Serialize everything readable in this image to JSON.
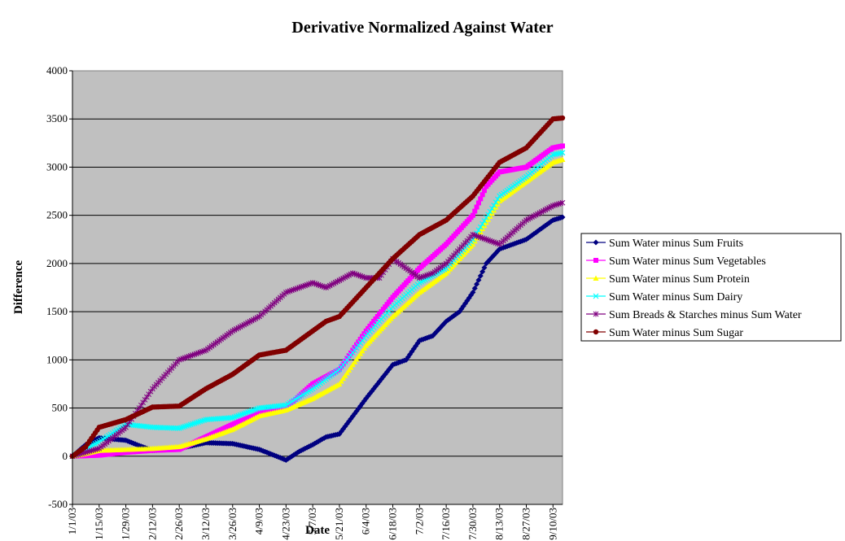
{
  "chart_data": {
    "type": "line",
    "title": "Derivative Normalized Against Water",
    "xlabel": "Date",
    "ylabel": "Difference",
    "ylim": [
      -500,
      4000
    ],
    "yticks": [
      "-500",
      "0",
      "500",
      "1000",
      "1500",
      "2000",
      "2500",
      "3000",
      "3500",
      "4000"
    ],
    "xticks": [
      "1/1/03",
      "1/15/03",
      "1/29/03",
      "2/12/03",
      "2/26/03",
      "3/12/03",
      "3/26/03",
      "4/9/03",
      "4/23/03",
      "5/7/03",
      "5/21/03",
      "6/4/03",
      "6/18/03",
      "7/2/03",
      "7/16/03",
      "7/30/03",
      "8/13/03",
      "8/27/03",
      "9/10/03"
    ],
    "x_start": "1/1/03",
    "x_end": "9/15/03",
    "grid": true,
    "legend_position": "right",
    "plot_background": "#c0c0c0",
    "series": [
      {
        "name": "Sum Water minus Sum Fruits",
        "color": "#000080",
        "marker": "diamond",
        "points": [
          [
            "1/1/03",
            0
          ],
          [
            "1/8/03",
            120
          ],
          [
            "1/15/03",
            190
          ],
          [
            "1/29/03",
            165
          ],
          [
            "2/5/03",
            110
          ],
          [
            "2/12/03",
            60
          ],
          [
            "2/26/03",
            80
          ],
          [
            "3/12/03",
            140
          ],
          [
            "3/26/03",
            130
          ],
          [
            "4/9/03",
            70
          ],
          [
            "4/18/03",
            0
          ],
          [
            "4/23/03",
            -40
          ],
          [
            "4/30/03",
            50
          ],
          [
            "5/7/03",
            120
          ],
          [
            "5/14/03",
            200
          ],
          [
            "5/21/03",
            230
          ],
          [
            "6/4/03",
            600
          ],
          [
            "6/18/03",
            950
          ],
          [
            "6/25/03",
            1000
          ],
          [
            "7/2/03",
            1200
          ],
          [
            "7/9/03",
            1250
          ],
          [
            "7/16/03",
            1400
          ],
          [
            "7/23/03",
            1500
          ],
          [
            "7/30/03",
            1700
          ],
          [
            "8/6/03",
            2000
          ],
          [
            "8/13/03",
            2150
          ],
          [
            "8/27/03",
            2250
          ],
          [
            "9/10/03",
            2450
          ],
          [
            "9/15/03",
            2480
          ]
        ]
      },
      {
        "name": "Sum Water minus Sum Vegetables",
        "color": "#ff00ff",
        "marker": "square",
        "points": [
          [
            "1/1/03",
            0
          ],
          [
            "1/15/03",
            10
          ],
          [
            "1/29/03",
            40
          ],
          [
            "2/12/03",
            60
          ],
          [
            "2/26/03",
            70
          ],
          [
            "3/12/03",
            200
          ],
          [
            "3/26/03",
            330
          ],
          [
            "4/9/03",
            450
          ],
          [
            "4/23/03",
            500
          ],
          [
            "5/7/03",
            750
          ],
          [
            "5/21/03",
            900
          ],
          [
            "6/4/03",
            1300
          ],
          [
            "6/18/03",
            1650
          ],
          [
            "7/2/03",
            1950
          ],
          [
            "7/16/03",
            2200
          ],
          [
            "7/30/03",
            2500
          ],
          [
            "8/6/03",
            2800
          ],
          [
            "8/13/03",
            2950
          ],
          [
            "8/27/03",
            3000
          ],
          [
            "9/10/03",
            3200
          ],
          [
            "9/15/03",
            3220
          ]
        ]
      },
      {
        "name": "Sum Water minus Sum Protein",
        "color": "#ffff00",
        "marker": "triangle",
        "points": [
          [
            "1/1/03",
            0
          ],
          [
            "1/15/03",
            60
          ],
          [
            "1/29/03",
            70
          ],
          [
            "2/12/03",
            80
          ],
          [
            "2/26/03",
            100
          ],
          [
            "3/12/03",
            180
          ],
          [
            "3/26/03",
            280
          ],
          [
            "4/9/03",
            420
          ],
          [
            "4/23/03",
            480
          ],
          [
            "5/7/03",
            600
          ],
          [
            "5/21/03",
            750
          ],
          [
            "6/4/03",
            1150
          ],
          [
            "6/18/03",
            1450
          ],
          [
            "7/2/03",
            1700
          ],
          [
            "7/16/03",
            1900
          ],
          [
            "7/30/03",
            2200
          ],
          [
            "8/13/03",
            2650
          ],
          [
            "8/27/03",
            2850
          ],
          [
            "9/10/03",
            3050
          ],
          [
            "9/15/03",
            3080
          ]
        ]
      },
      {
        "name": "Sum Water minus Sum Dairy",
        "color": "#00ffff",
        "marker": "x",
        "points": [
          [
            "1/1/03",
            0
          ],
          [
            "1/15/03",
            150
          ],
          [
            "1/29/03",
            330
          ],
          [
            "2/12/03",
            300
          ],
          [
            "2/26/03",
            290
          ],
          [
            "3/12/03",
            380
          ],
          [
            "3/26/03",
            400
          ],
          [
            "4/9/03",
            500
          ],
          [
            "4/23/03",
            530
          ],
          [
            "5/7/03",
            700
          ],
          [
            "5/21/03",
            900
          ],
          [
            "6/4/03",
            1250
          ],
          [
            "6/18/03",
            1550
          ],
          [
            "7/2/03",
            1800
          ],
          [
            "7/16/03",
            1950
          ],
          [
            "7/30/03",
            2250
          ],
          [
            "8/13/03",
            2700
          ],
          [
            "8/27/03",
            2900
          ],
          [
            "9/10/03",
            3130
          ],
          [
            "9/15/03",
            3150
          ]
        ]
      },
      {
        "name": "Sum Breads & Starches minus Sum Water",
        "color": "#800080",
        "marker": "star",
        "points": [
          [
            "1/1/03",
            0
          ],
          [
            "1/15/03",
            80
          ],
          [
            "1/29/03",
            300
          ],
          [
            "2/5/03",
            500
          ],
          [
            "2/12/03",
            700
          ],
          [
            "2/26/03",
            1000
          ],
          [
            "3/12/03",
            1100
          ],
          [
            "3/26/03",
            1300
          ],
          [
            "4/9/03",
            1450
          ],
          [
            "4/23/03",
            1700
          ],
          [
            "5/7/03",
            1800
          ],
          [
            "5/14/03",
            1750
          ],
          [
            "5/28/03",
            1900
          ],
          [
            "6/4/03",
            1850
          ],
          [
            "6/11/03",
            1850
          ],
          [
            "6/18/03",
            2050
          ],
          [
            "6/25/03",
            1950
          ],
          [
            "7/2/03",
            1850
          ],
          [
            "7/9/03",
            1900
          ],
          [
            "7/16/03",
            2000
          ],
          [
            "7/23/03",
            2150
          ],
          [
            "7/30/03",
            2300
          ],
          [
            "8/13/03",
            2200
          ],
          [
            "8/27/03",
            2450
          ],
          [
            "9/10/03",
            2600
          ],
          [
            "9/15/03",
            2630
          ]
        ]
      },
      {
        "name": "Sum Water minus Sum Sugar",
        "color": "#800000",
        "marker": "circle",
        "points": [
          [
            "1/1/03",
            0
          ],
          [
            "1/8/03",
            100
          ],
          [
            "1/15/03",
            300
          ],
          [
            "1/29/03",
            380
          ],
          [
            "2/12/03",
            510
          ],
          [
            "2/26/03",
            520
          ],
          [
            "3/12/03",
            700
          ],
          [
            "3/26/03",
            850
          ],
          [
            "4/9/03",
            1050
          ],
          [
            "4/23/03",
            1100
          ],
          [
            "5/7/03",
            1300
          ],
          [
            "5/14/03",
            1400
          ],
          [
            "5/21/03",
            1450
          ],
          [
            "6/4/03",
            1750
          ],
          [
            "6/18/03",
            2050
          ],
          [
            "7/2/03",
            2300
          ],
          [
            "7/16/03",
            2450
          ],
          [
            "7/30/03",
            2700
          ],
          [
            "8/13/03",
            3050
          ],
          [
            "8/27/03",
            3200
          ],
          [
            "9/10/03",
            3500
          ],
          [
            "9/15/03",
            3510
          ]
        ]
      }
    ]
  }
}
